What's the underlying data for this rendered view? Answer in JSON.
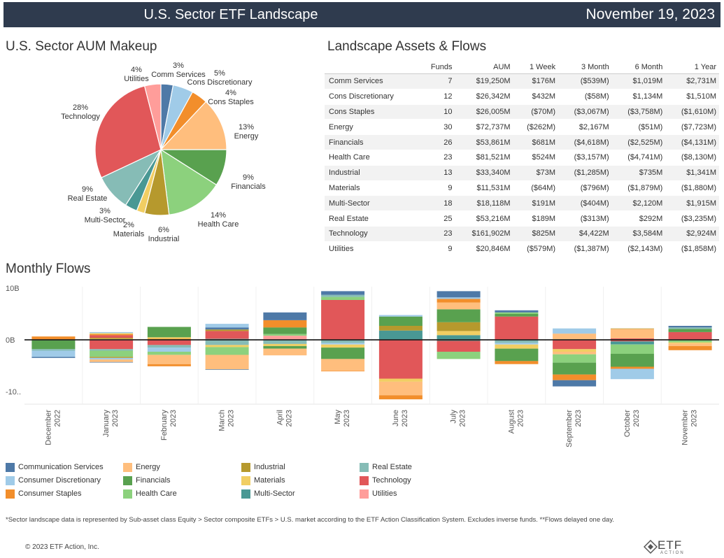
{
  "header": {
    "title": "U.S. Sector ETF Landscape",
    "date": "November 19, 2023"
  },
  "pie_title": "U.S. Sector AUM Makeup",
  "table_title": "Landscape Assets & Flows",
  "bar_title": "Monthly Flows",
  "colors": {
    "comm": "#4e79a7",
    "consdisc": "#a0cbe8",
    "consstap": "#f28e2b",
    "energy": "#ffbe7d",
    "fin": "#59a14f",
    "health": "#8cd17d",
    "ind": "#b6992d",
    "mat": "#f1ce63",
    "multi": "#499894",
    "realest": "#86bcb6",
    "tech": "#e15759",
    "util": "#ff9d9a",
    "header_bg": "#2f3b4e"
  },
  "table": {
    "columns": [
      "Funds",
      "AUM",
      "1 Week",
      "3 Month",
      "6 Month",
      "1 Year"
    ],
    "rows": [
      {
        "sector": "Comm Services",
        "funds": "7",
        "aum": "$19,250M",
        "w1": "$176M",
        "m3": "($539M)",
        "m6": "$1,019M",
        "y1": "$2,731M"
      },
      {
        "sector": "Cons Discretionary",
        "funds": "12",
        "aum": "$26,342M",
        "w1": "$432M",
        "m3": "($58M)",
        "m6": "$1,134M",
        "y1": "$1,510M"
      },
      {
        "sector": "Cons Staples",
        "funds": "10",
        "aum": "$26,005M",
        "w1": "($70M)",
        "m3": "($3,067M)",
        "m6": "($3,758M)",
        "y1": "($1,610M)"
      },
      {
        "sector": "Energy",
        "funds": "30",
        "aum": "$72,737M",
        "w1": "($262M)",
        "m3": "$2,167M",
        "m6": "($51M)",
        "y1": "($7,723M)"
      },
      {
        "sector": "Financials",
        "funds": "26",
        "aum": "$53,861M",
        "w1": "$681M",
        "m3": "($4,618M)",
        "m6": "($2,525M)",
        "y1": "($4,131M)"
      },
      {
        "sector": "Health Care",
        "funds": "23",
        "aum": "$81,521M",
        "w1": "$524M",
        "m3": "($3,157M)",
        "m6": "($4,741M)",
        "y1": "($8,130M)"
      },
      {
        "sector": "Industrial",
        "funds": "13",
        "aum": "$33,340M",
        "w1": "$73M",
        "m3": "($1,285M)",
        "m6": "$735M",
        "y1": "$1,341M"
      },
      {
        "sector": "Materials",
        "funds": "9",
        "aum": "$11,531M",
        "w1": "($64M)",
        "m3": "($796M)",
        "m6": "($1,879M)",
        "y1": "($1,880M)"
      },
      {
        "sector": "Multi-Sector",
        "funds": "18",
        "aum": "$18,118M",
        "w1": "$191M",
        "m3": "($404M)",
        "m6": "$2,120M",
        "y1": "$1,915M"
      },
      {
        "sector": "Real Estate",
        "funds": "25",
        "aum": "$53,216M",
        "w1": "$189M",
        "m3": "($313M)",
        "m6": "$292M",
        "y1": "($3,235M)"
      },
      {
        "sector": "Technology",
        "funds": "23",
        "aum": "$161,902M",
        "w1": "$825M",
        "m3": "$4,422M",
        "m6": "$3,584M",
        "y1": "$2,924M"
      },
      {
        "sector": "Utilities",
        "funds": "9",
        "aum": "$20,846M",
        "w1": "($579M)",
        "m3": "($1,387M)",
        "m6": "($2,143M)",
        "y1": "($1,858M)"
      }
    ]
  },
  "legend": [
    {
      "label": "Communication Services",
      "key": "comm"
    },
    {
      "label": "Consumer Discretionary",
      "key": "consdisc"
    },
    {
      "label": "Consumer Staples",
      "key": "consstap"
    },
    {
      "label": "Energy",
      "key": "energy"
    },
    {
      "label": "Financials",
      "key": "fin"
    },
    {
      "label": "Health Care",
      "key": "health"
    },
    {
      "label": "Industrial",
      "key": "ind"
    },
    {
      "label": "Materials",
      "key": "mat"
    },
    {
      "label": "Multi-Sector",
      "key": "multi"
    },
    {
      "label": "Real Estate",
      "key": "realest"
    },
    {
      "label": "Technology",
      "key": "tech"
    },
    {
      "label": "Utilities",
      "key": "util"
    }
  ],
  "footnote": "*Sector landscape data is represented by Sub-asset class Equity > Sector composite ETFs > U.S. market according to the ETF Action Classification System. Excludes inverse funds. **Flows delayed one day.",
  "copyright": "© 2023 ETF Action, Inc.",
  "logo": {
    "main": "ETF",
    "sub": "ACTION"
  },
  "chart_data": [
    {
      "type": "pie",
      "title": "U.S. Sector AUM Makeup",
      "slices": [
        {
          "key": "comm",
          "name": "Comm Services",
          "pct": "3%",
          "value": 3
        },
        {
          "key": "consdisc",
          "name": "Cons Discretionary",
          "pct": "5%",
          "value": 5
        },
        {
          "key": "consstap",
          "name": "Cons Staples",
          "pct": "4%",
          "value": 4
        },
        {
          "key": "energy",
          "name": "Energy",
          "pct": "13%",
          "value": 13
        },
        {
          "key": "fin",
          "name": "Financials",
          "pct": "9%",
          "value": 9
        },
        {
          "key": "health",
          "name": "Health Care",
          "pct": "14%",
          "value": 14
        },
        {
          "key": "ind",
          "name": "Industrial",
          "pct": "6%",
          "value": 6
        },
        {
          "key": "mat",
          "name": "Materials",
          "pct": "2%",
          "value": 2
        },
        {
          "key": "multi",
          "name": "Multi-Sector",
          "pct": "3%",
          "value": 3
        },
        {
          "key": "realest",
          "name": "Real Estate",
          "pct": "9%",
          "value": 9
        },
        {
          "key": "tech",
          "name": "Technology",
          "pct": "28%",
          "value": 28
        },
        {
          "key": "util",
          "name": "Utilities",
          "pct": "4%",
          "value": 4
        }
      ]
    },
    {
      "type": "bar",
      "stacked": true,
      "title": "Monthly Flows",
      "unit": "$B",
      "ylim": [
        -11.5,
        10
      ],
      "y_ticks": [
        {
          "value": 10,
          "label": "10B"
        },
        {
          "value": 0,
          "label": "0B"
        },
        {
          "value": -10,
          "label": "-10.."
        }
      ],
      "grid": false,
      "months": [
        {
          "line1": "December",
          "line2": "2022",
          "pos": [
            [
              "multi",
              0.05
            ],
            [
              "consstap",
              0.6
            ]
          ],
          "neg": [
            [
              "fin",
              -1.8
            ],
            [
              "realest",
              -0.3
            ],
            [
              "consdisc",
              -1.2
            ],
            [
              "comm",
              -0.2
            ]
          ]
        },
        {
          "line1": "January",
          "line2": "2023",
          "pos": [
            [
              "energy",
              0.2
            ],
            [
              "ind",
              0.2
            ],
            [
              "tech",
              0.5
            ],
            [
              "consstap",
              0.2
            ],
            [
              "mat",
              0.2
            ],
            [
              "consdisc",
              0.2
            ]
          ],
          "neg": [
            [
              "tech",
              -1.8
            ],
            [
              "realest",
              -0.3
            ],
            [
              "health",
              -1.2
            ],
            [
              "ind",
              -0.2
            ],
            [
              "consdisc",
              -0.3
            ],
            [
              "energy",
              -0.5
            ],
            [
              "comm",
              -0.1
            ]
          ]
        },
        {
          "line1": "February",
          "line2": "2023",
          "pos": [
            [
              "consstap",
              0.2
            ],
            [
              "mat",
              0.3
            ],
            [
              "fin",
              2.0
            ]
          ],
          "neg": [
            [
              "tech",
              -1.0
            ],
            [
              "realest",
              -0.5
            ],
            [
              "consdisc",
              -0.8
            ],
            [
              "health",
              -0.6
            ],
            [
              "energy",
              -1.8
            ],
            [
              "consstap",
              -0.4
            ]
          ]
        },
        {
          "line1": "March",
          "line2": "2023",
          "pos": [
            [
              "realest",
              0.2
            ],
            [
              "tech",
              1.5
            ],
            [
              "ind",
              0.3
            ],
            [
              "comm",
              0.4
            ],
            [
              "consdisc",
              0.7
            ]
          ],
          "neg": [
            [
              "realest",
              -1.0
            ],
            [
              "mat",
              -0.4
            ],
            [
              "health",
              -1.5
            ],
            [
              "energy",
              -2.8
            ],
            [
              "comm",
              -0.1
            ]
          ]
        },
        {
          "line1": "April",
          "line2": "2023",
          "pos": [
            [
              "util",
              0.8
            ],
            [
              "health",
              0.3
            ],
            [
              "fin",
              1.3
            ],
            [
              "consstap",
              1.4
            ],
            [
              "comm",
              1.5
            ]
          ],
          "neg": [
            [
              "realest",
              -0.8
            ],
            [
              "mat",
              -0.4
            ],
            [
              "fin",
              -0.5
            ],
            [
              "energy",
              -1.3
            ]
          ]
        },
        {
          "line1": "May",
          "line2": "2023",
          "pos": [
            [
              "tech",
              7.7
            ],
            [
              "health",
              0.6
            ],
            [
              "realest",
              0.4
            ],
            [
              "comm",
              0.7
            ]
          ],
          "neg": [
            [
              "realest",
              -0.6
            ],
            [
              "consdisc",
              -0.3
            ],
            [
              "mat",
              -0.6
            ],
            [
              "fin",
              -2.2
            ],
            [
              "energy",
              -2.3
            ],
            [
              "consstap",
              -0.1
            ]
          ]
        },
        {
          "line1": "June",
          "line2": "2023",
          "pos": [
            [
              "multi",
              1.8
            ],
            [
              "ind",
              0.9
            ],
            [
              "fin",
              1.8
            ],
            [
              "consdisc",
              0.3
            ]
          ],
          "neg": [
            [
              "tech",
              -7.5
            ],
            [
              "mat",
              -0.6
            ],
            [
              "energy",
              -2.6
            ],
            [
              "consstap",
              -0.8
            ]
          ]
        },
        {
          "line1": "July",
          "line2": "2023",
          "pos": [
            [
              "multi",
              0.9
            ],
            [
              "mat",
              0.8
            ],
            [
              "ind",
              1.7
            ],
            [
              "fin",
              2.5
            ],
            [
              "energy",
              1.3
            ],
            [
              "consstap",
              0.7
            ],
            [
              "consdisc",
              0.3
            ],
            [
              "comm",
              1.2
            ]
          ],
          "neg": [
            [
              "multi",
              -0.2
            ],
            [
              "tech",
              -2.1
            ],
            [
              "health",
              -1.4
            ]
          ]
        },
        {
          "line1": "August",
          "line2": "2023",
          "pos": [
            [
              "tech",
              4.5
            ],
            [
              "fin",
              0.5
            ],
            [
              "health",
              0.3
            ],
            [
              "comm",
              0.4
            ]
          ],
          "neg": [
            [
              "realest",
              -0.6
            ],
            [
              "consdisc",
              -0.3
            ],
            [
              "mat",
              -0.8
            ],
            [
              "fin",
              -2.4
            ],
            [
              "consstap",
              -0.6
            ]
          ]
        },
        {
          "line1": "September",
          "line2": "2023",
          "pos": [
            [
              "energy",
              1.2
            ],
            [
              "consdisc",
              1.0
            ]
          ],
          "neg": [
            [
              "tech",
              -1.8
            ],
            [
              "mat",
              -0.5
            ],
            [
              "energy",
              -0.5
            ],
            [
              "health",
              -1.6
            ],
            [
              "fin",
              -2.3
            ],
            [
              "consstap",
              -1.1
            ],
            [
              "comm",
              -1.2
            ]
          ]
        },
        {
          "line1": "October",
          "line2": "2023",
          "pos": [
            [
              "tech",
              0.3
            ],
            [
              "energy",
              1.8
            ],
            [
              "ind",
              0.1
            ]
          ],
          "neg": [
            [
              "tech",
              -0.3
            ],
            [
              "multi",
              -0.6
            ],
            [
              "health",
              -1.8
            ],
            [
              "fin",
              -2.5
            ],
            [
              "consstap",
              -0.4
            ],
            [
              "consdisc",
              -2.0
            ]
          ]
        },
        {
          "line1": "November",
          "line2": "2023",
          "pos": [
            [
              "tech",
              1.5
            ],
            [
              "fin",
              0.6
            ],
            [
              "realest",
              0.3
            ],
            [
              "comm",
              0.3
            ]
          ],
          "neg": [
            [
              "health",
              -0.5
            ],
            [
              "mat",
              -0.2
            ],
            [
              "energy",
              -0.5
            ],
            [
              "consstap",
              -0.8
            ]
          ]
        }
      ]
    }
  ]
}
